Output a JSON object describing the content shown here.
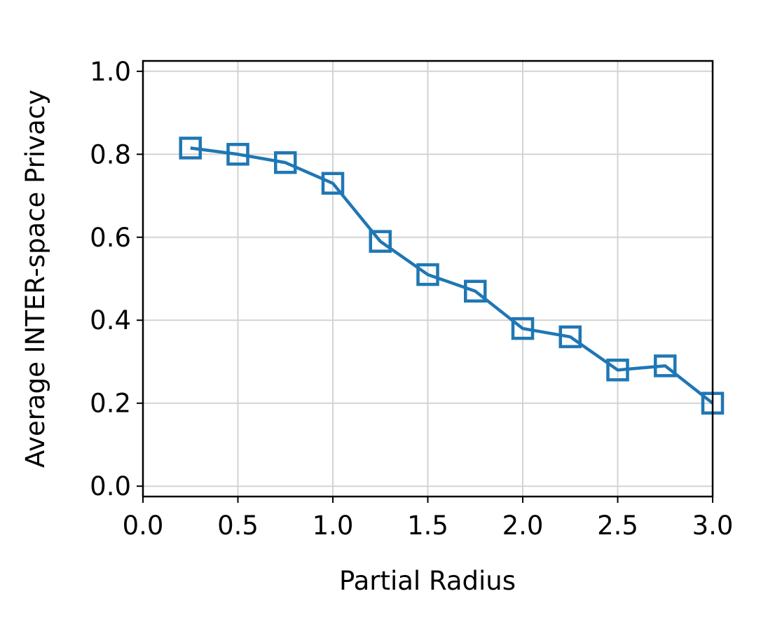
{
  "chart_data": {
    "type": "line",
    "title": "",
    "xlabel": "Partial Radius",
    "ylabel": "Average INTER-space Privacy",
    "xlim": [
      0.0,
      3.0
    ],
    "ylim": [
      -0.025,
      1.025
    ],
    "grid": true,
    "x_ticks": [
      0.0,
      0.5,
      1.0,
      1.5,
      2.0,
      2.5,
      3.0
    ],
    "x_tick_labels": [
      "0.0",
      "0.5",
      "1.0",
      "1.5",
      "2.0",
      "2.5",
      "3.0"
    ],
    "y_ticks": [
      0.0,
      0.2,
      0.4,
      0.6,
      0.8,
      1.0
    ],
    "y_tick_labels": [
      "0.0",
      "0.2",
      "0.4",
      "0.6",
      "0.8",
      "1.0"
    ],
    "series": [
      {
        "color": "#1f77b4",
        "marker": "square-open",
        "x": [
          0.25,
          0.5,
          0.75,
          1.0,
          1.25,
          1.5,
          1.75,
          2.0,
          2.25,
          2.5,
          2.75,
          3.0
        ],
        "y": [
          0.815,
          0.8,
          0.78,
          0.73,
          0.59,
          0.51,
          0.47,
          0.38,
          0.36,
          0.28,
          0.29,
          0.2
        ]
      }
    ]
  }
}
